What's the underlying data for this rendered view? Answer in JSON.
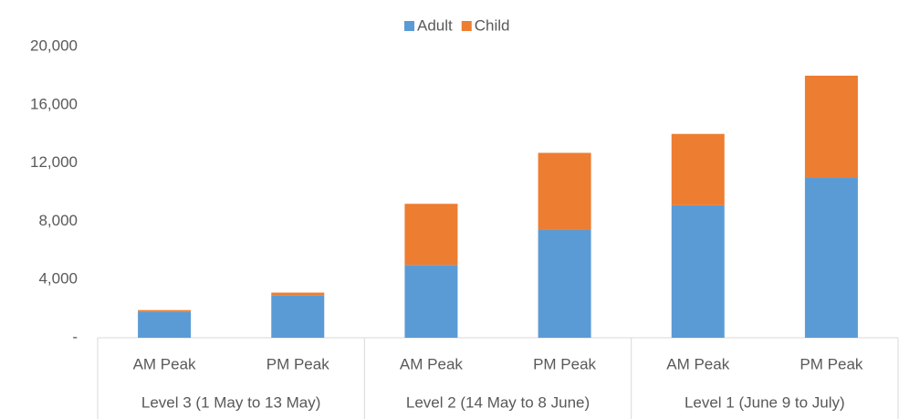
{
  "chart_data": {
    "type": "stacked_bar",
    "categories": [
      "AM Peak",
      "PM Peak",
      "AM Peak",
      "PM Peak",
      "AM Peak",
      "PM Peak"
    ],
    "groups": [
      "Level 3 (1 May to 13 May)",
      "Level 2 (14 May to 8 June)",
      "Level 1 (June 9 to July)"
    ],
    "series": [
      {
        "name": "Adult",
        "color": "#5b9bd5",
        "values": [
          1800,
          2900,
          5000,
          7400,
          9100,
          11000
        ]
      },
      {
        "name": "Child",
        "color": "#ed7d31",
        "values": [
          100,
          200,
          4200,
          5300,
          4900,
          7000
        ]
      }
    ],
    "ylim": [
      0,
      20000
    ],
    "yticks": [
      {
        "value": 0,
        "label": "-"
      },
      {
        "value": 4000,
        "label": "4,000"
      },
      {
        "value": 8000,
        "label": "8,000"
      },
      {
        "value": 12000,
        "label": "12,000"
      },
      {
        "value": 16000,
        "label": "16,000"
      },
      {
        "value": 20000,
        "label": "20,000"
      }
    ],
    "grid": false,
    "legend": "top"
  }
}
